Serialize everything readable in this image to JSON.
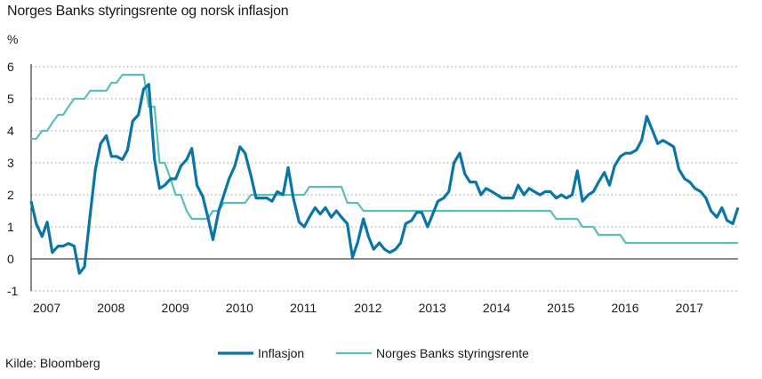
{
  "chart_data": {
    "type": "line",
    "title": "Norges Banks styringsrente og norsk inflasjon",
    "ylabel": "%",
    "source": "Kilde: Bloomberg",
    "ylim": [
      -1,
      6
    ],
    "yticks": [
      -1,
      0,
      1,
      2,
      3,
      4,
      5,
      6
    ],
    "xlim": [
      2007.0,
      2018.0
    ],
    "xticks": [
      "2007",
      "2008",
      "2009",
      "2010",
      "2011",
      "2012",
      "2013",
      "2014",
      "2015",
      "2016",
      "2017"
    ],
    "grid": "horizontal dotted",
    "legend": "bottom",
    "series": [
      {
        "name": "Inflasjon",
        "color": "#0a76a6",
        "points": [
          [
            2007.0,
            1.8
          ],
          [
            2007.08,
            1.1
          ],
          [
            2007.17,
            0.7
          ],
          [
            2007.25,
            1.15
          ],
          [
            2007.33,
            0.2
          ],
          [
            2007.42,
            0.4
          ],
          [
            2007.5,
            0.4
          ],
          [
            2007.58,
            0.48
          ],
          [
            2007.67,
            0.4
          ],
          [
            2007.75,
            -0.45
          ],
          [
            2007.83,
            -0.25
          ],
          [
            2007.92,
            1.4
          ],
          [
            2008.0,
            2.8
          ],
          [
            2008.08,
            3.6
          ],
          [
            2008.17,
            3.85
          ],
          [
            2008.25,
            3.2
          ],
          [
            2008.33,
            3.2
          ],
          [
            2008.42,
            3.1
          ],
          [
            2008.5,
            3.4
          ],
          [
            2008.58,
            4.3
          ],
          [
            2008.67,
            4.5
          ],
          [
            2008.75,
            5.3
          ],
          [
            2008.83,
            5.45
          ],
          [
            2008.92,
            3.1
          ],
          [
            2009.0,
            2.2
          ],
          [
            2009.08,
            2.3
          ],
          [
            2009.17,
            2.5
          ],
          [
            2009.25,
            2.5
          ],
          [
            2009.33,
            2.9
          ],
          [
            2009.42,
            3.1
          ],
          [
            2009.5,
            3.45
          ],
          [
            2009.58,
            2.3
          ],
          [
            2009.67,
            1.95
          ],
          [
            2009.75,
            1.3
          ],
          [
            2009.83,
            0.6
          ],
          [
            2009.92,
            1.5
          ],
          [
            2010.0,
            2.0
          ],
          [
            2010.08,
            2.5
          ],
          [
            2010.17,
            2.9
          ],
          [
            2010.25,
            3.5
          ],
          [
            2010.33,
            3.3
          ],
          [
            2010.42,
            2.6
          ],
          [
            2010.5,
            1.9
          ],
          [
            2010.58,
            1.9
          ],
          [
            2010.67,
            1.9
          ],
          [
            2010.75,
            1.8
          ],
          [
            2010.83,
            2.1
          ],
          [
            2010.92,
            2.0
          ],
          [
            2011.0,
            2.85
          ],
          [
            2011.08,
            1.9
          ],
          [
            2011.17,
            1.15
          ],
          [
            2011.25,
            1.0
          ],
          [
            2011.33,
            1.3
          ],
          [
            2011.42,
            1.6
          ],
          [
            2011.5,
            1.4
          ],
          [
            2011.58,
            1.6
          ],
          [
            2011.67,
            1.3
          ],
          [
            2011.75,
            1.5
          ],
          [
            2011.83,
            1.3
          ],
          [
            2011.92,
            1.1
          ],
          [
            2012.0,
            0.05
          ],
          [
            2012.08,
            0.5
          ],
          [
            2012.17,
            1.25
          ],
          [
            2012.25,
            0.7
          ],
          [
            2012.33,
            0.3
          ],
          [
            2012.42,
            0.5
          ],
          [
            2012.5,
            0.3
          ],
          [
            2012.58,
            0.2
          ],
          [
            2012.67,
            0.3
          ],
          [
            2012.75,
            0.5
          ],
          [
            2012.83,
            1.1
          ],
          [
            2012.92,
            1.2
          ],
          [
            2013.0,
            1.45
          ],
          [
            2013.08,
            1.45
          ],
          [
            2013.17,
            1.0
          ],
          [
            2013.25,
            1.4
          ],
          [
            2013.33,
            1.8
          ],
          [
            2013.42,
            1.9
          ],
          [
            2013.5,
            2.1
          ],
          [
            2013.58,
            3.0
          ],
          [
            2013.67,
            3.3
          ],
          [
            2013.75,
            2.65
          ],
          [
            2013.83,
            2.4
          ],
          [
            2013.92,
            2.4
          ],
          [
            2014.0,
            2.0
          ],
          [
            2014.08,
            2.2
          ],
          [
            2014.17,
            2.1
          ],
          [
            2014.25,
            2.0
          ],
          [
            2014.33,
            1.9
          ],
          [
            2014.42,
            1.9
          ],
          [
            2014.5,
            1.9
          ],
          [
            2014.58,
            2.3
          ],
          [
            2014.67,
            2.0
          ],
          [
            2014.75,
            2.2
          ],
          [
            2014.83,
            2.1
          ],
          [
            2014.92,
            2.0
          ],
          [
            2015.0,
            2.1
          ],
          [
            2015.08,
            2.1
          ],
          [
            2015.17,
            1.9
          ],
          [
            2015.25,
            2.0
          ],
          [
            2015.33,
            1.9
          ],
          [
            2015.42,
            2.0
          ],
          [
            2015.5,
            2.75
          ],
          [
            2015.58,
            1.8
          ],
          [
            2015.67,
            2.0
          ],
          [
            2015.75,
            2.1
          ],
          [
            2015.83,
            2.4
          ],
          [
            2015.92,
            2.7
          ],
          [
            2016.0,
            2.3
          ],
          [
            2016.08,
            2.9
          ],
          [
            2016.17,
            3.2
          ],
          [
            2016.25,
            3.3
          ],
          [
            2016.33,
            3.3
          ],
          [
            2016.42,
            3.4
          ],
          [
            2016.5,
            3.7
          ],
          [
            2016.58,
            4.45
          ],
          [
            2016.67,
            4.0
          ],
          [
            2016.75,
            3.6
          ],
          [
            2016.83,
            3.7
          ],
          [
            2016.92,
            3.6
          ],
          [
            2017.0,
            3.5
          ],
          [
            2017.08,
            2.8
          ],
          [
            2017.17,
            2.5
          ],
          [
            2017.25,
            2.4
          ],
          [
            2017.33,
            2.2
          ],
          [
            2017.42,
            2.1
          ],
          [
            2017.5,
            1.9
          ],
          [
            2017.58,
            1.5
          ],
          [
            2017.67,
            1.3
          ],
          [
            2017.75,
            1.6
          ],
          [
            2017.83,
            1.2
          ],
          [
            2017.92,
            1.1
          ],
          [
            2018.0,
            1.6
          ]
        ]
      },
      {
        "name": "Norges Banks styringsrente",
        "color": "#5bbfb9",
        "points": [
          [
            2007.0,
            3.75
          ],
          [
            2007.08,
            3.75
          ],
          [
            2007.17,
            4.0
          ],
          [
            2007.25,
            4.0
          ],
          [
            2007.33,
            4.25
          ],
          [
            2007.42,
            4.5
          ],
          [
            2007.5,
            4.5
          ],
          [
            2007.58,
            4.75
          ],
          [
            2007.67,
            5.0
          ],
          [
            2007.75,
            5.0
          ],
          [
            2007.83,
            5.0
          ],
          [
            2007.92,
            5.25
          ],
          [
            2008.0,
            5.25
          ],
          [
            2008.08,
            5.25
          ],
          [
            2008.17,
            5.25
          ],
          [
            2008.25,
            5.5
          ],
          [
            2008.33,
            5.5
          ],
          [
            2008.42,
            5.75
          ],
          [
            2008.5,
            5.75
          ],
          [
            2008.58,
            5.75
          ],
          [
            2008.67,
            5.75
          ],
          [
            2008.75,
            5.75
          ],
          [
            2008.83,
            4.75
          ],
          [
            2008.92,
            4.75
          ],
          [
            2009.0,
            3.0
          ],
          [
            2009.08,
            3.0
          ],
          [
            2009.17,
            2.5
          ],
          [
            2009.25,
            2.0
          ],
          [
            2009.33,
            2.0
          ],
          [
            2009.42,
            1.5
          ],
          [
            2009.5,
            1.25
          ],
          [
            2009.58,
            1.25
          ],
          [
            2009.67,
            1.25
          ],
          [
            2009.75,
            1.25
          ],
          [
            2009.83,
            1.5
          ],
          [
            2009.92,
            1.5
          ],
          [
            2010.0,
            1.75
          ],
          [
            2010.08,
            1.75
          ],
          [
            2010.17,
            1.75
          ],
          [
            2010.25,
            1.75
          ],
          [
            2010.33,
            1.75
          ],
          [
            2010.42,
            2.0
          ],
          [
            2010.5,
            2.0
          ],
          [
            2010.58,
            2.0
          ],
          [
            2010.67,
            2.0
          ],
          [
            2010.75,
            2.0
          ],
          [
            2010.83,
            2.0
          ],
          [
            2010.92,
            2.0
          ],
          [
            2011.0,
            2.0
          ],
          [
            2011.08,
            2.0
          ],
          [
            2011.17,
            2.0
          ],
          [
            2011.25,
            2.0
          ],
          [
            2011.33,
            2.25
          ],
          [
            2011.42,
            2.25
          ],
          [
            2011.5,
            2.25
          ],
          [
            2011.58,
            2.25
          ],
          [
            2011.67,
            2.25
          ],
          [
            2011.75,
            2.25
          ],
          [
            2011.83,
            2.25
          ],
          [
            2011.92,
            1.75
          ],
          [
            2012.0,
            1.75
          ],
          [
            2012.08,
            1.75
          ],
          [
            2012.17,
            1.5
          ],
          [
            2012.25,
            1.5
          ],
          [
            2012.33,
            1.5
          ],
          [
            2012.42,
            1.5
          ],
          [
            2012.5,
            1.5
          ],
          [
            2012.58,
            1.5
          ],
          [
            2012.67,
            1.5
          ],
          [
            2012.75,
            1.5
          ],
          [
            2012.83,
            1.5
          ],
          [
            2012.92,
            1.5
          ],
          [
            2013.0,
            1.5
          ],
          [
            2014.0,
            1.5
          ],
          [
            2015.0,
            1.5
          ],
          [
            2015.08,
            1.5
          ],
          [
            2015.17,
            1.25
          ],
          [
            2015.25,
            1.25
          ],
          [
            2015.33,
            1.25
          ],
          [
            2015.42,
            1.25
          ],
          [
            2015.5,
            1.25
          ],
          [
            2015.58,
            1.0
          ],
          [
            2015.67,
            1.0
          ],
          [
            2015.75,
            1.0
          ],
          [
            2015.83,
            0.75
          ],
          [
            2015.92,
            0.75
          ],
          [
            2016.0,
            0.75
          ],
          [
            2016.08,
            0.75
          ],
          [
            2016.17,
            0.75
          ],
          [
            2016.25,
            0.5
          ],
          [
            2016.33,
            0.5
          ],
          [
            2016.42,
            0.5
          ],
          [
            2016.5,
            0.5
          ],
          [
            2016.58,
            0.5
          ],
          [
            2016.67,
            0.5
          ],
          [
            2016.75,
            0.5
          ],
          [
            2016.83,
            0.5
          ],
          [
            2016.92,
            0.5
          ],
          [
            2017.0,
            0.5
          ],
          [
            2018.0,
            0.5
          ]
        ]
      }
    ]
  }
}
